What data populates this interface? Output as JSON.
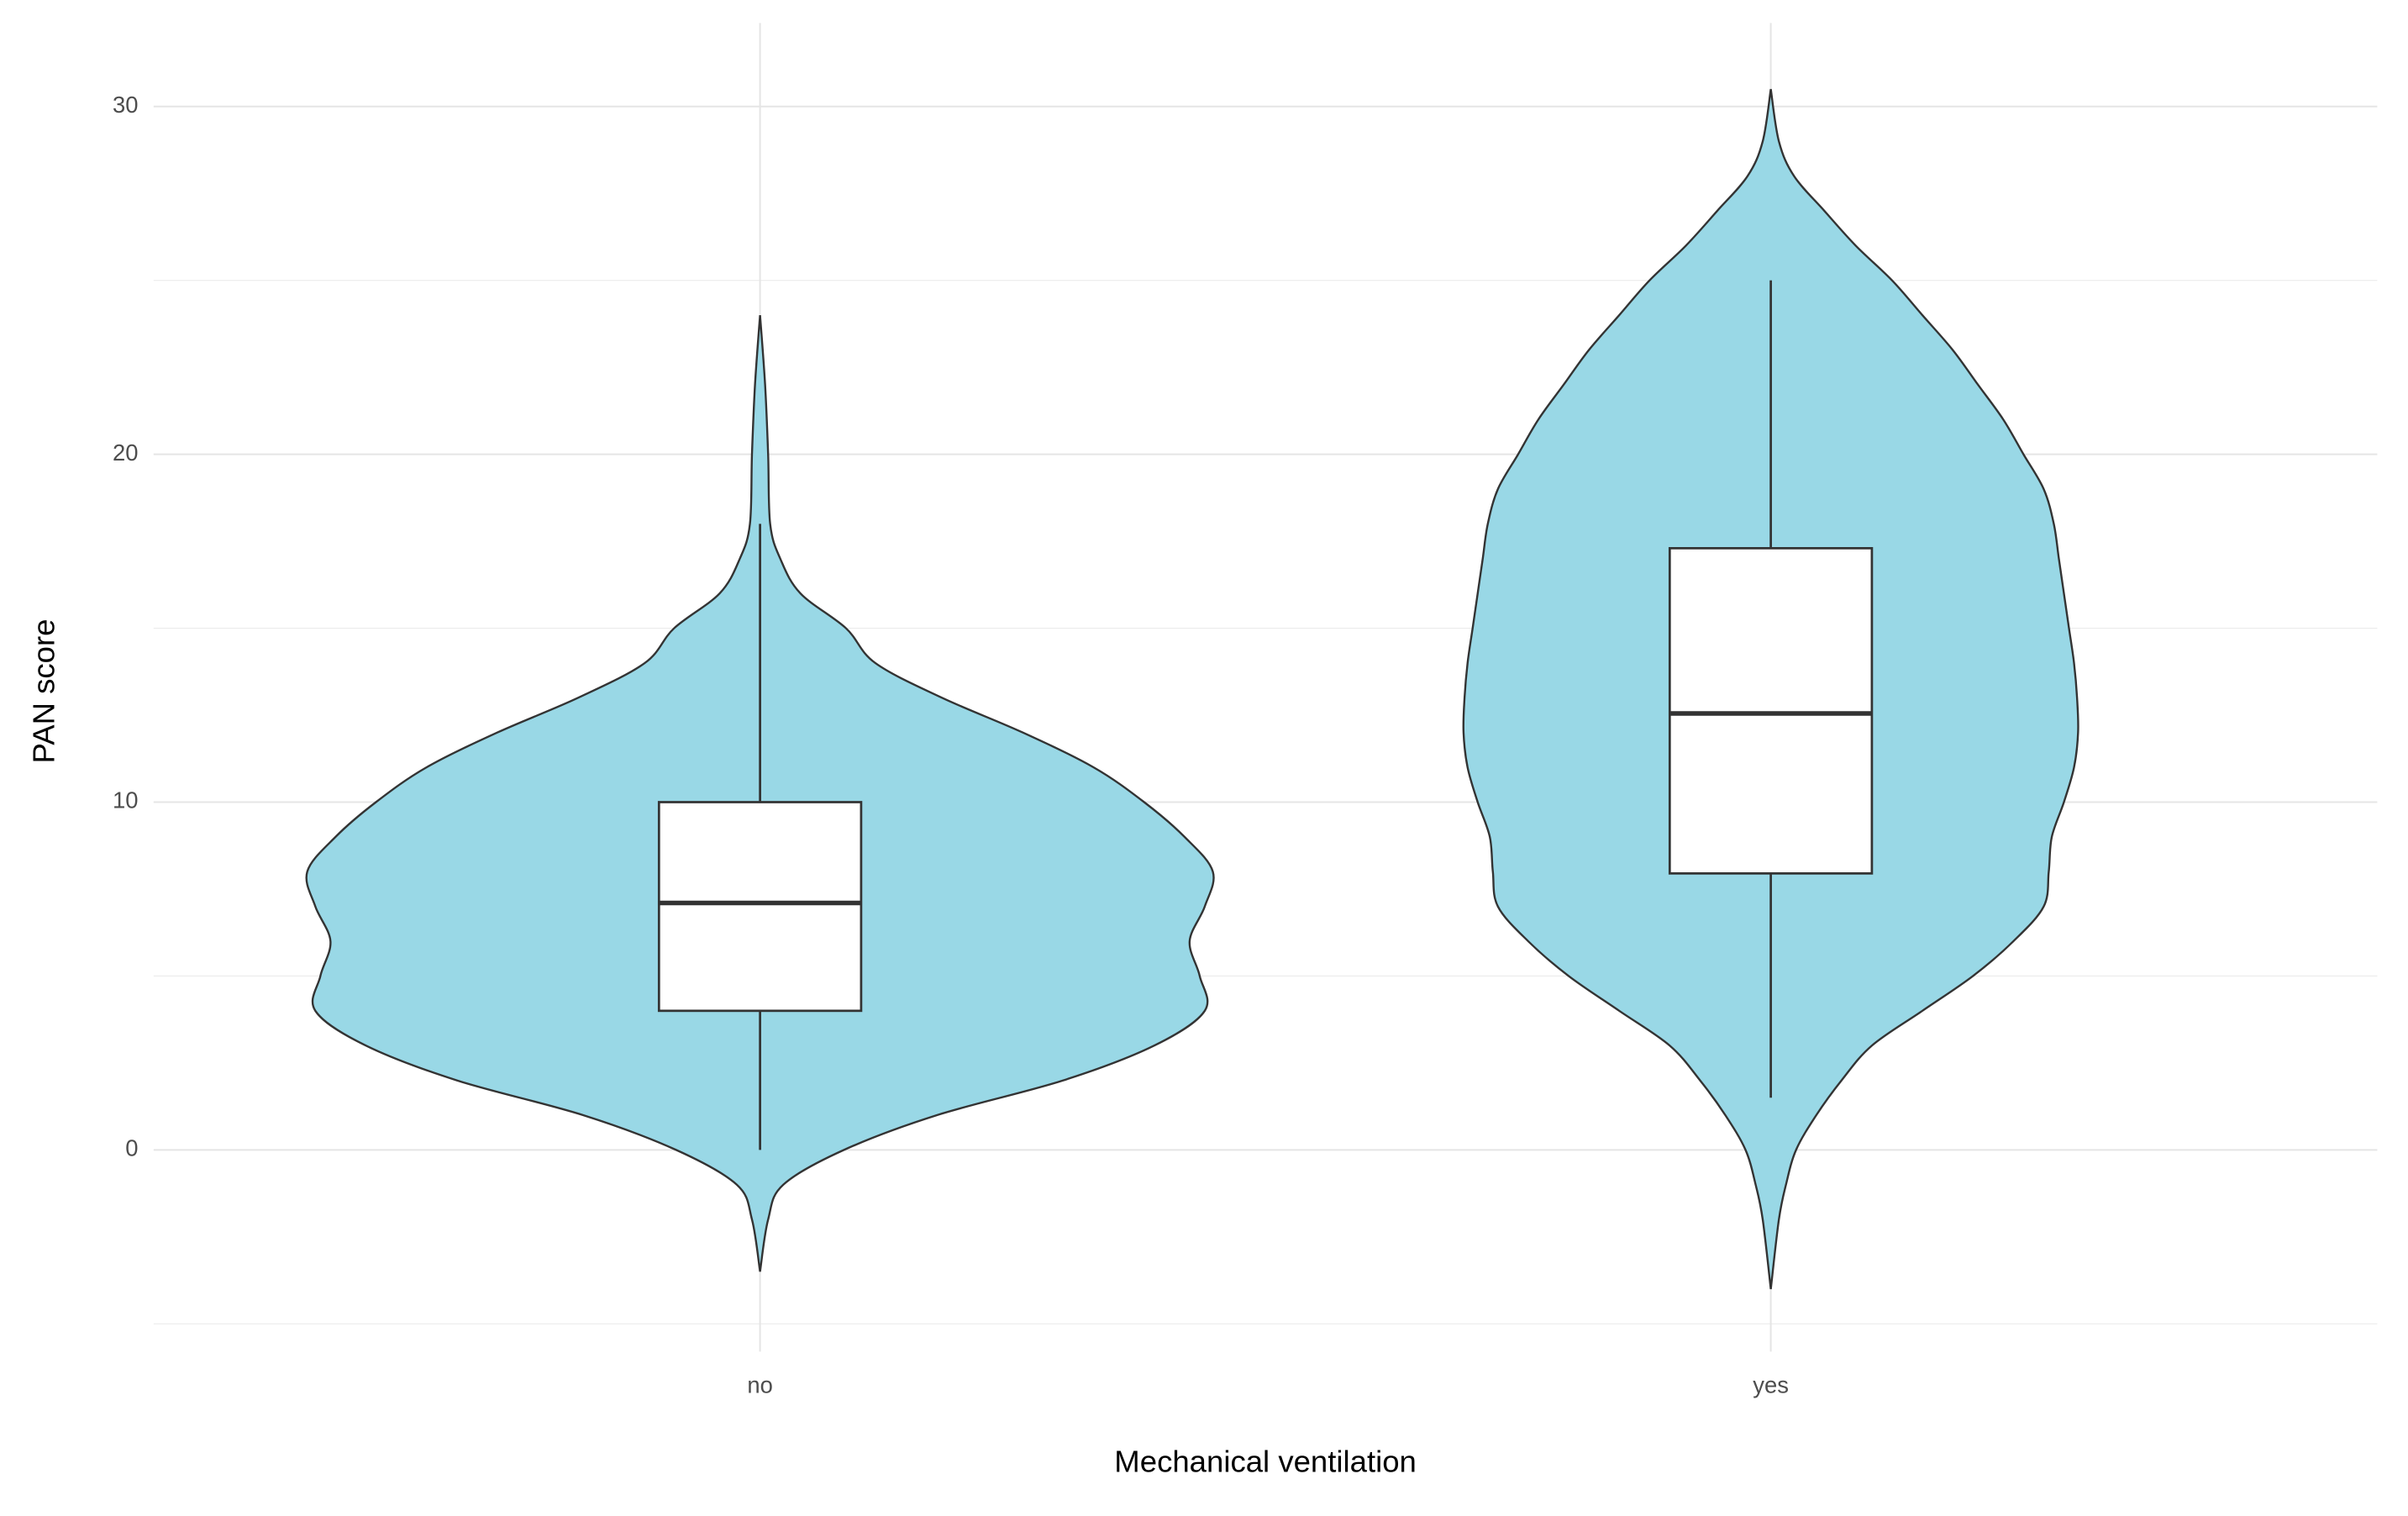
{
  "chart_data": {
    "type": "violin",
    "x_label": "Mechanical ventilation",
    "y_label": "PAN score",
    "categories": [
      "no",
      "yes"
    ],
    "color": "#99d8e6",
    "outline_color": "#333333",
    "box_fill": "#ffffff",
    "grid": true,
    "ylim": [
      -5.8,
      32.4
    ],
    "yticks": [
      0,
      10,
      20,
      30
    ],
    "minor_yticks": [
      -5,
      5,
      15,
      25
    ],
    "violins": [
      {
        "y": [
          24,
          22,
          20,
          18,
          17,
          16,
          15,
          14,
          13,
          12,
          11,
          10,
          9,
          8,
          7,
          6,
          5,
          4,
          3,
          2,
          1,
          0,
          -1,
          -2,
          -3.5
        ],
        "width": [
          0,
          0.005,
          0.008,
          0.01,
          0.02,
          0.04,
          0.085,
          0.114,
          0.18,
          0.26,
          0.33,
          0.38,
          0.42,
          0.448,
          0.44,
          0.425,
          0.435,
          0.44,
          0.39,
          0.3,
          0.175,
          0.083,
          0.023,
          0.008,
          0
        ]
      },
      {
        "y": [
          30.5,
          29,
          28,
          27,
          26,
          25,
          24,
          23,
          22,
          21,
          20,
          19,
          18,
          17,
          16,
          15,
          14,
          13,
          12,
          11,
          10,
          9,
          8,
          7,
          6,
          5,
          4,
          3,
          2,
          1,
          0,
          -1,
          -2,
          -4
        ],
        "width": [
          0,
          0.008,
          0.023,
          0.053,
          0.084,
          0.12,
          0.15,
          0.18,
          0.205,
          0.23,
          0.25,
          0.27,
          0.28,
          0.285,
          0.29,
          0.295,
          0.3,
          0.303,
          0.304,
          0.3,
          0.29,
          0.278,
          0.275,
          0.27,
          0.24,
          0.2,
          0.15,
          0.1,
          0.07,
          0.045,
          0.025,
          0.015,
          0.008,
          0
        ]
      }
    ],
    "boxes": [
      {
        "min": 0,
        "q1": 4,
        "median": 7.1,
        "q3": 10,
        "max": 18
      },
      {
        "min": 1.5,
        "q1": 7.95,
        "median": 12.55,
        "q3": 17.3,
        "max": 25
      }
    ]
  }
}
